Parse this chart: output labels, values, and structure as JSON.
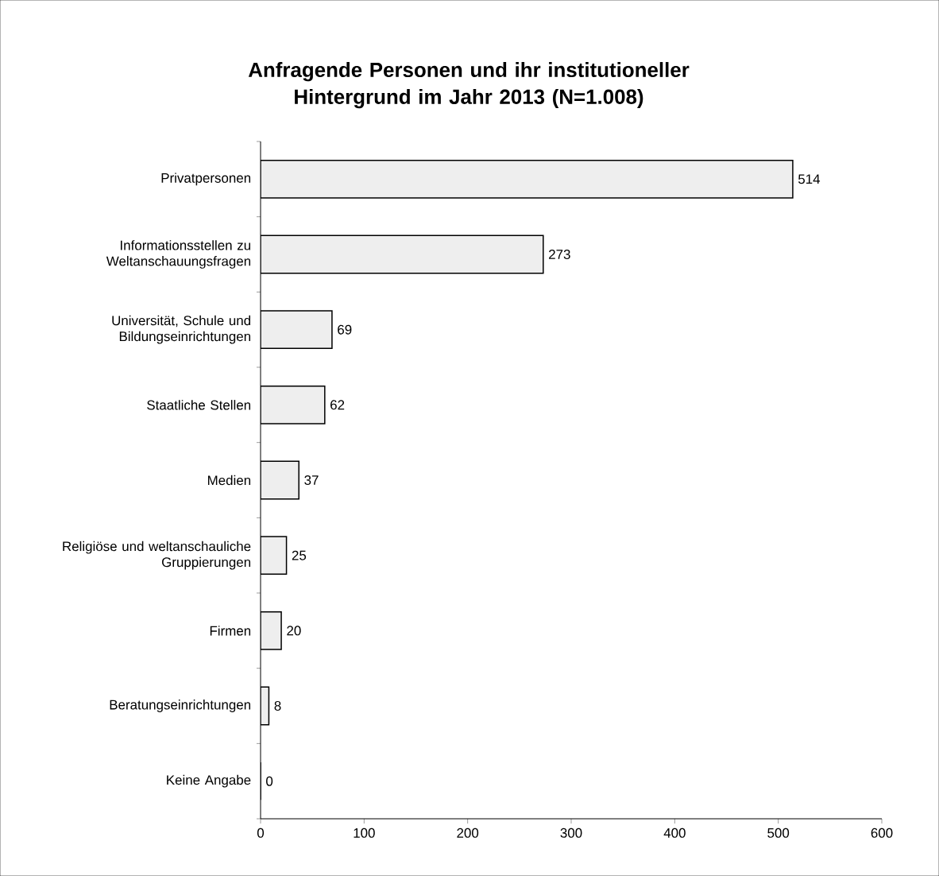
{
  "chart_data": {
    "type": "bar",
    "orientation": "horizontal",
    "title": "Anfragende Personen und ihr institutioneller Hintergrund im Jahr 2013 (N=1.008)",
    "categories": [
      "Privatpersonen",
      "Informationsstellen zu Weltanschauungsfragen",
      "Universität, Schule und Bildungseinrichtungen",
      "Staatliche Stellen",
      "Medien",
      "Religiöse und weltanschauliche Gruppierungen",
      "Firmen",
      "Beratungseinrichtungen",
      "Keine Angabe"
    ],
    "values": [
      514,
      273,
      69,
      62,
      37,
      25,
      20,
      8,
      0
    ],
    "color": "#eeeeee",
    "xlim": [
      0,
      600
    ],
    "xticks": [
      0,
      100,
      200,
      300,
      400,
      500,
      600
    ],
    "data_labels": true,
    "grid": false
  }
}
